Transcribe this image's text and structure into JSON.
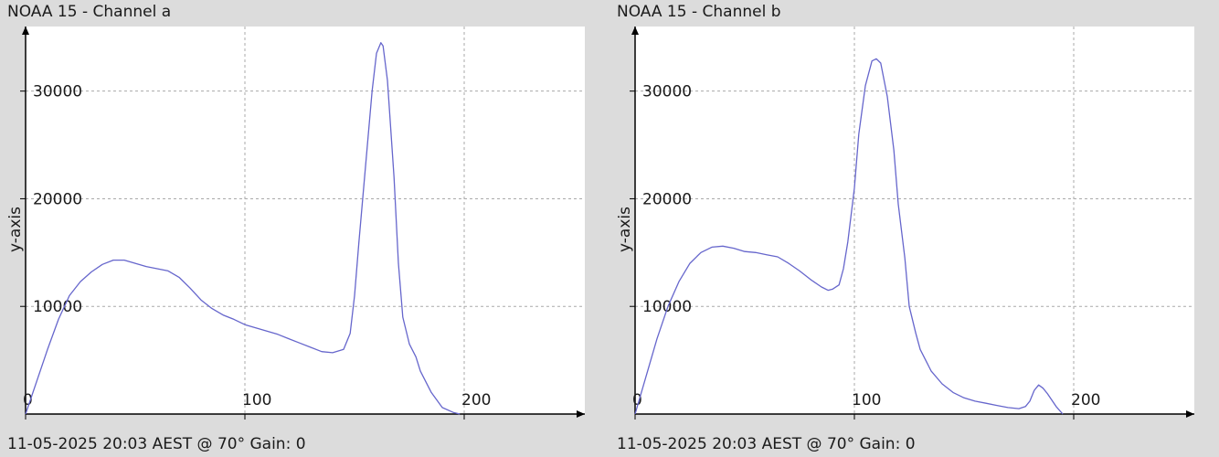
{
  "panels": [
    {
      "title": "NOAA 15 - Channel a",
      "footer": "11-05-2025 20:03 AEST @ 70° Gain: 0",
      "ylabel": "y-axis"
    },
    {
      "title": "NOAA 15 - Channel b",
      "footer": "11-05-2025 20:03 AEST @ 70° Gain: 0",
      "ylabel": "y-axis"
    }
  ],
  "colors": {
    "line": "#6666cc",
    "grid": "#aaaaaa",
    "plot_bg": "#ffffff",
    "frame": "#000000",
    "window_bg": "#dcdcdc"
  },
  "chart_data": [
    {
      "type": "line",
      "title": "NOAA 15 - Channel a",
      "xlabel": "",
      "ylabel": "y-axis",
      "xlim": [
        0,
        255
      ],
      "ylim": [
        0,
        36000
      ],
      "x_ticks": [
        0,
        100,
        200
      ],
      "y_ticks": [
        10000,
        20000,
        30000
      ],
      "grid": true,
      "series": [
        {
          "x": [
            0,
            5,
            10,
            15,
            20,
            25,
            30,
            35,
            40,
            45,
            50,
            55,
            60,
            65,
            70,
            75,
            80,
            85,
            90,
            95,
            100,
            105,
            110,
            115,
            120,
            125,
            130,
            135,
            140,
            145,
            148,
            150,
            152,
            155,
            158,
            160,
            162,
            163,
            165,
            168,
            170,
            172,
            175,
            178,
            180,
            185,
            190,
            195,
            198
          ],
          "y": [
            0,
            3000,
            6000,
            8800,
            11000,
            12300,
            13200,
            13900,
            14300,
            14300,
            14000,
            13700,
            13500,
            13300,
            12700,
            11700,
            10600,
            9800,
            9200,
            8800,
            8300,
            8000,
            7700,
            7400,
            7000,
            6600,
            6200,
            5800,
            5700,
            6000,
            7500,
            11000,
            16000,
            23000,
            30000,
            33500,
            34500,
            34200,
            31000,
            22000,
            14000,
            9000,
            6500,
            5300,
            4000,
            2000,
            600,
            150,
            0
          ]
        }
      ]
    },
    {
      "type": "line",
      "title": "NOAA 15 - Channel b",
      "xlabel": "",
      "ylabel": "y-axis",
      "xlim": [
        0,
        255
      ],
      "ylim": [
        0,
        36000
      ],
      "x_ticks": [
        0,
        100,
        200
      ],
      "y_ticks": [
        10000,
        20000,
        30000
      ],
      "grid": true,
      "series": [
        {
          "x": [
            0,
            5,
            10,
            15,
            20,
            25,
            30,
            35,
            40,
            45,
            50,
            55,
            60,
            65,
            70,
            75,
            80,
            85,
            88,
            90,
            93,
            95,
            97,
            100,
            102,
            105,
            108,
            110,
            112,
            115,
            118,
            120,
            123,
            125,
            128,
            130,
            135,
            140,
            145,
            150,
            155,
            160,
            165,
            170,
            175,
            178,
            180,
            182,
            184,
            186,
            188,
            192,
            195
          ],
          "y": [
            0,
            3500,
            7000,
            10000,
            12300,
            14000,
            15000,
            15500,
            15600,
            15400,
            15100,
            15000,
            14800,
            14600,
            14000,
            13300,
            12500,
            11800,
            11500,
            11600,
            12000,
            13500,
            16000,
            21000,
            26000,
            30500,
            32800,
            33000,
            32600,
            29500,
            24500,
            19500,
            14500,
            10000,
            7500,
            6000,
            4000,
            2800,
            2000,
            1500,
            1200,
            1000,
            800,
            600,
            500,
            700,
            1200,
            2200,
            2700,
            2400,
            1900,
            700,
            0
          ]
        }
      ]
    }
  ]
}
